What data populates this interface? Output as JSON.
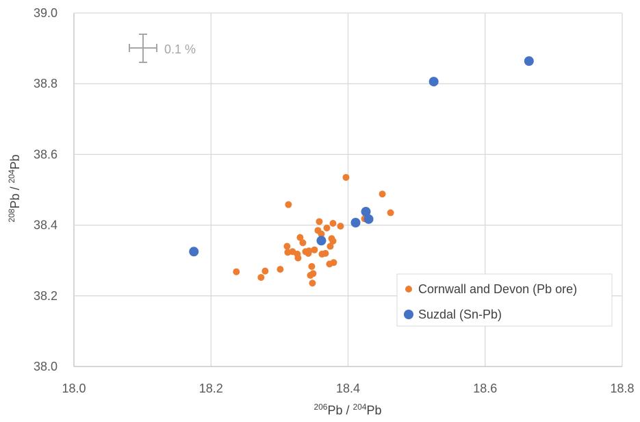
{
  "chart_data": {
    "type": "scatter",
    "xlabel": {
      "sup1": "206",
      "base1": "Pb / ",
      "sup2": "204",
      "base2": "Pb"
    },
    "ylabel": {
      "sup1": "208",
      "base1": "Pb / ",
      "sup2": "204",
      "base2": "Pb"
    },
    "xlim": [
      18.0,
      18.8
    ],
    "ylim": [
      38.0,
      39.0
    ],
    "xticks": [
      "18.0",
      "18.2",
      "18.4",
      "18.6",
      "18.8"
    ],
    "yticks": [
      "38.0",
      "38.2",
      "38.4",
      "38.6",
      "38.8",
      "39.0"
    ],
    "grid": true,
    "legend_position": "bottom-right",
    "error_bar_label": "0.1 %",
    "colors": {
      "cornwall": "#ED7D31",
      "suzdal": "#4472C4",
      "grid": "#d9d9d9",
      "axis": "#bfbfbf"
    },
    "series": [
      {
        "name": "Cornwall and Devon (Pb ore)",
        "points": [
          [
            18.237,
            38.268
          ],
          [
            18.273,
            38.252
          ],
          [
            18.279,
            38.27
          ],
          [
            18.301,
            38.275
          ],
          [
            18.311,
            38.34
          ],
          [
            18.313,
            38.458
          ],
          [
            18.312,
            38.323
          ],
          [
            18.319,
            38.325
          ],
          [
            18.326,
            38.318
          ],
          [
            18.327,
            38.307
          ],
          [
            18.33,
            38.365
          ],
          [
            18.334,
            38.35
          ],
          [
            18.338,
            38.325
          ],
          [
            18.342,
            38.32
          ],
          [
            18.343,
            38.327
          ],
          [
            18.345,
            38.258
          ],
          [
            18.347,
            38.283
          ],
          [
            18.348,
            38.236
          ],
          [
            18.349,
            38.263
          ],
          [
            18.351,
            38.33
          ],
          [
            18.356,
            38.385
          ],
          [
            18.358,
            38.41
          ],
          [
            18.361,
            38.375
          ],
          [
            18.362,
            38.318
          ],
          [
            18.367,
            38.32
          ],
          [
            18.369,
            38.392
          ],
          [
            18.373,
            38.29
          ],
          [
            18.374,
            38.34
          ],
          [
            18.376,
            38.362
          ],
          [
            18.378,
            38.405
          ],
          [
            18.378,
            38.355
          ],
          [
            18.379,
            38.294
          ],
          [
            18.389,
            38.397
          ],
          [
            18.397,
            38.535
          ],
          [
            18.424,
            38.418
          ],
          [
            18.45,
            38.488
          ],
          [
            18.462,
            38.435
          ]
        ]
      },
      {
        "name": "Suzdal (Sn-Pb)",
        "points": [
          [
            18.175,
            38.325
          ],
          [
            18.361,
            38.356
          ],
          [
            18.411,
            38.407
          ],
          [
            18.426,
            38.438
          ],
          [
            18.43,
            38.417
          ],
          [
            18.525,
            38.806
          ],
          [
            18.664,
            38.864
          ]
        ]
      }
    ]
  }
}
